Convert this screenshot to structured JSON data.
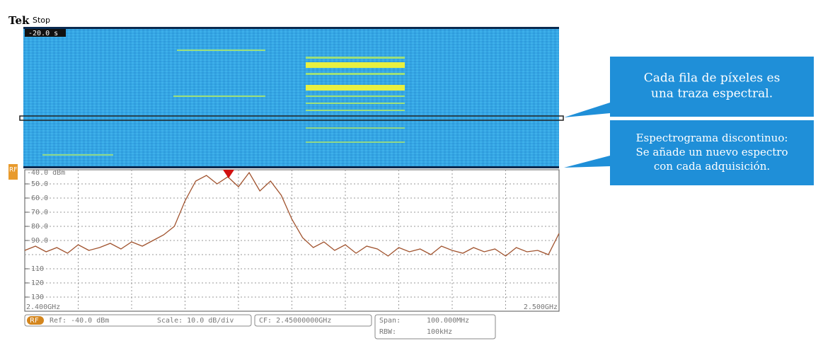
{
  "chart_data": {
    "type": "line",
    "x": [
      2.4,
      2.402,
      2.404,
      2.406,
      2.408,
      2.41,
      2.412,
      2.414,
      2.416,
      2.418,
      2.42,
      2.422,
      2.424,
      2.426,
      2.428,
      2.43,
      2.432,
      2.434,
      2.436,
      2.438,
      2.44,
      2.442,
      2.444,
      2.446,
      2.448,
      2.45,
      2.452,
      2.454,
      2.456,
      2.458,
      2.46,
      2.462,
      2.464,
      2.466,
      2.468,
      2.47,
      2.472,
      2.474,
      2.476,
      2.478,
      2.48,
      2.482,
      2.484,
      2.486,
      2.488,
      2.49,
      2.492,
      2.494,
      2.496,
      2.498,
      2.5
    ],
    "values": [
      -97,
      -94,
      -98,
      -95,
      -99,
      -93,
      -97,
      -95,
      -92,
      -96,
      -91,
      -94,
      -90,
      -86,
      -80,
      -62,
      -48,
      -44,
      -50,
      -45,
      -52,
      -42,
      -55,
      -48,
      -58,
      -75,
      -88,
      -95,
      -91,
      -97,
      -93,
      -99,
      -94,
      -96,
      -101,
      -95,
      -98,
      -96,
      -100,
      -94,
      -97,
      -99,
      -95,
      -98,
      -96,
      -101,
      -95,
      -98,
      -97,
      -100,
      -85
    ],
    "color": "#a0522d",
    "xlim": [
      2.4,
      2.5
    ],
    "ylim": [
      -140,
      -40
    ],
    "xticks": [
      {
        "value": 2.4,
        "label": "2.400GHz"
      },
      {
        "value": 2.5,
        "label": "2.500GHz"
      }
    ],
    "yticks": [
      {
        "value": -40,
        "label": "-40.0 dBm"
      },
      {
        "value": -50,
        "label": "-50.0"
      },
      {
        "value": -60,
        "label": "-60.0"
      },
      {
        "value": -70,
        "label": "-70.0"
      },
      {
        "value": -80,
        "label": "-80.0"
      },
      {
        "value": -90,
        "label": "-90.0"
      },
      -110,
      -120,
      -130
    ],
    "grid": true
  },
  "screen": {
    "brand": "Tek",
    "state": "Stop",
    "time": "-20.0 s",
    "rf_badge": "RF",
    "status": {
      "rf": "RF",
      "ref": "Ref: -40.0 dBm",
      "scale": "Scale: 10.0 dB/div",
      "cf": "CF:  2.45000000GHz",
      "span_label": "Span:",
      "span": "100.000MHz",
      "rbw_label": "RBW:",
      "rbw": "100kHz"
    },
    "callouts": [
      {
        "lines": [
          "Cada fila de píxeles es",
          "una traza espectral."
        ]
      },
      {
        "lines": [
          "Espectrograma discontinuo:",
          "Se añade un nuevo espectro",
          "con cada adquisición."
        ]
      }
    ]
  }
}
